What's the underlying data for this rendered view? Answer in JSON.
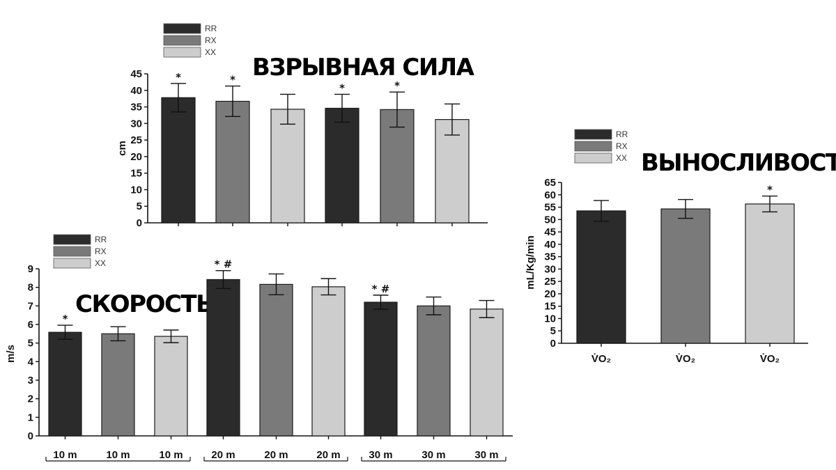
{
  "colors": {
    "RR": "#2b2b2b",
    "RX": "#7a7a7a",
    "XX": "#cdcdcd",
    "axis": "#111111"
  },
  "chart_data": [
    {
      "id": "power",
      "type": "bar",
      "title": "ВЗРЫВНАЯ СИЛА",
      "ylabel": "cm",
      "xlabel": "",
      "ylim": [
        0,
        45
      ],
      "yticks": [
        0,
        5,
        10,
        15,
        20,
        25,
        30,
        35,
        40,
        45
      ],
      "legend": [
        "RR",
        "RX",
        "XX"
      ],
      "legend_position": "top-left",
      "bars": [
        {
          "group": "RR",
          "value": 37.8,
          "err": 4.3,
          "mark": "*"
        },
        {
          "group": "RX",
          "value": 36.7,
          "err": 4.6,
          "mark": "*"
        },
        {
          "group": "XX",
          "value": 34.3,
          "err": 4.5,
          "mark": ""
        },
        {
          "group": "RR",
          "value": 34.6,
          "err": 4.2,
          "mark": "*"
        },
        {
          "group": "RX",
          "value": 34.2,
          "err": 5.3,
          "mark": "*"
        },
        {
          "group": "XX",
          "value": 31.2,
          "err": 4.7,
          "mark": ""
        }
      ]
    },
    {
      "id": "endurance",
      "type": "bar",
      "title": "ВЫНОСЛИВОСТЬ",
      "ylabel": "mL/Kg/min",
      "xlabel": "",
      "ylim": [
        0,
        65
      ],
      "yticks": [
        0,
        5,
        10,
        15,
        20,
        25,
        30,
        35,
        40,
        45,
        50,
        55,
        60,
        65
      ],
      "legend": [
        "RR",
        "RX",
        "XX"
      ],
      "legend_position": "top-left",
      "bars": [
        {
          "group": "RR",
          "value": 53.5,
          "err": 4.2,
          "mark": "",
          "label": "V̇O₂"
        },
        {
          "group": "RX",
          "value": 54.3,
          "err": 3.8,
          "mark": "",
          "label": "V̇O₂"
        },
        {
          "group": "XX",
          "value": 56.3,
          "err": 3.2,
          "mark": "*",
          "label": "V̇O₂"
        }
      ]
    },
    {
      "id": "speed",
      "type": "bar",
      "title": "СКОРОСТЬ",
      "ylabel": "m/s",
      "xlabel": "",
      "ylim": [
        0,
        9
      ],
      "yticks": [
        0,
        1,
        2,
        3,
        4,
        5,
        6,
        7,
        8,
        9
      ],
      "legend": [
        "RR",
        "RX",
        "XX"
      ],
      "legend_position": "top-left",
      "bars": [
        {
          "group": "RR",
          "value": 5.58,
          "err": 0.38,
          "mark": "*",
          "label": "10 m"
        },
        {
          "group": "RX",
          "value": 5.5,
          "err": 0.38,
          "mark": "",
          "label": "10 m"
        },
        {
          "group": "XX",
          "value": 5.36,
          "err": 0.34,
          "mark": "",
          "label": "10 m"
        },
        {
          "group": "RR",
          "value": 8.42,
          "err": 0.48,
          "mark": "* #",
          "label": "20 m"
        },
        {
          "group": "RX",
          "value": 8.16,
          "err": 0.56,
          "mark": "",
          "label": "20 m"
        },
        {
          "group": "XX",
          "value": 8.03,
          "err": 0.44,
          "mark": "",
          "label": "20 m"
        },
        {
          "group": "RR",
          "value": 7.2,
          "err": 0.38,
          "mark": "* #",
          "label": "30 m"
        },
        {
          "group": "RX",
          "value": 7.0,
          "err": 0.48,
          "mark": "",
          "label": "30 m"
        },
        {
          "group": "XX",
          "value": 6.83,
          "err": 0.46,
          "mark": "",
          "label": "30 m"
        }
      ]
    }
  ]
}
